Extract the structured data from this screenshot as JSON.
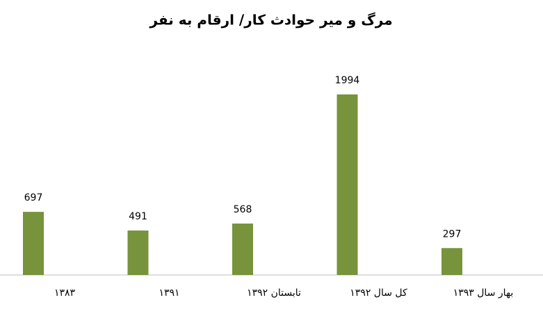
{
  "chart_data": {
    "type": "bar",
    "title": "مرگ و میر حوادث کار/ ارقام به نفر",
    "categories": [
      "۱۳۸۳",
      "۱۳۹۱",
      "تابستان ۱۳۹۲",
      "کل سال ۱۳۹۲",
      "بهار سال ۱۳۹۳"
    ],
    "values": [
      697,
      491,
      568,
      1994,
      297
    ],
    "color": "#77933c"
  }
}
